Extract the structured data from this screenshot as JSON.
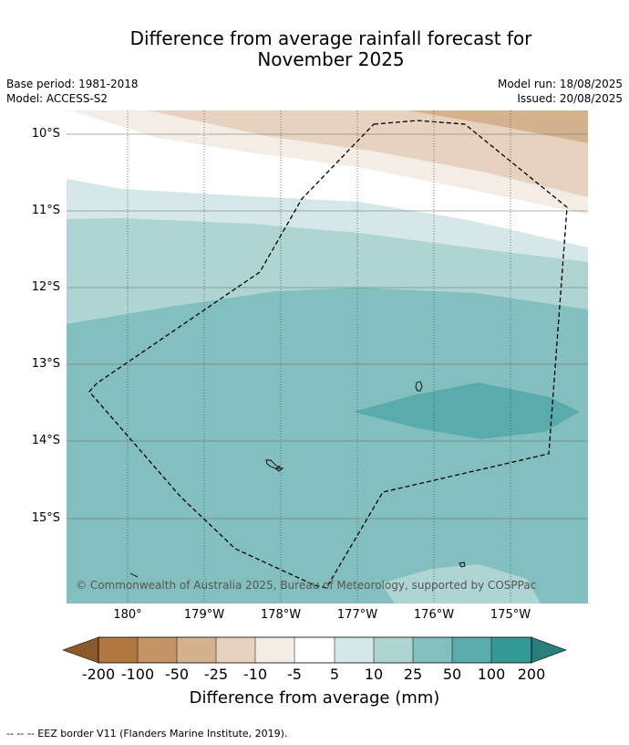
{
  "title_line1": "Difference from average rainfall forecast for",
  "title_line2": "November 2025",
  "meta_left": {
    "base_period": "Base period: 1981-2018",
    "model": "Model: ACCESS-S2"
  },
  "meta_right": {
    "model_run": "Model run: 18/08/2025",
    "issued": "Issued: 20/08/2025"
  },
  "lat_labels": [
    "10°S",
    "11°S",
    "12°S",
    "13°S",
    "14°S",
    "15°S"
  ],
  "lon_labels": [
    "180°",
    "179°W",
    "178°W",
    "177°W",
    "176°W",
    "175°W"
  ],
  "copyright": "© Commonwealth of Australia 2025, Bureau of Meteorology, supported by COSPPac",
  "colorbar": {
    "labels": [
      "-200",
      "-100",
      "-50",
      "-25",
      "-10",
      "-5",
      "5",
      "10",
      "25",
      "50",
      "100",
      "200"
    ],
    "colors": [
      "#8b5a2b",
      "#b07840",
      "#c49466",
      "#d4b290",
      "#e6d2bf",
      "#f3ede5",
      "#ffffff",
      "#d5e8e7",
      "#aed4d4",
      "#84bfbf",
      "#5aabab",
      "#339a98",
      "#2a7f7d"
    ],
    "title": "Difference from average (mm)"
  },
  "footnote": "--  --  -- EEZ border V11 (Flanders Marine Institute, 2019)."
}
